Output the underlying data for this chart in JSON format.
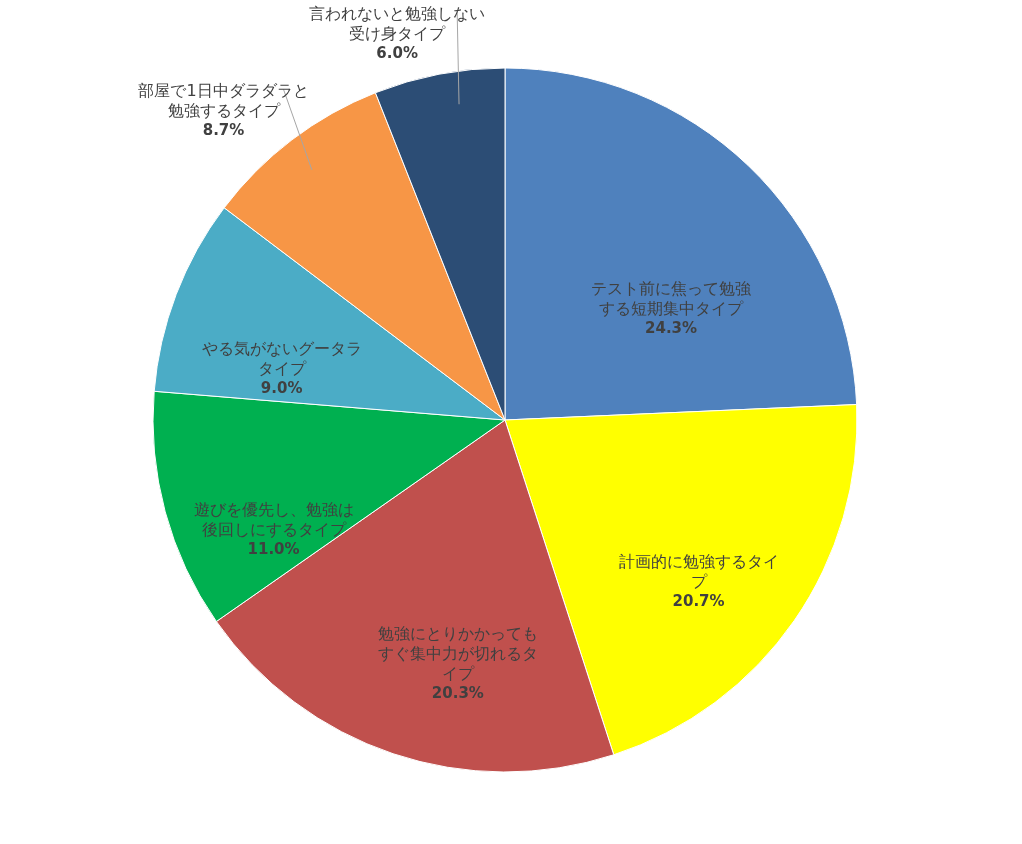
{
  "chart_data": {
    "type": "pie",
    "categories": [
      "テスト前に焦って勉強する短期集中タイプ",
      "計画的に勉強するタイプ",
      "勉強にとりかかってもすぐ集中力が切れるタイプ",
      "遊びを優先し、勉強は後回しにするタイプ",
      "やる気がないグータラタイプ",
      "部屋で1日中ダラダラと勉強するタイプ",
      "言われないと勉強しない受け身タイプ"
    ],
    "values": [
      24.3,
      20.7,
      20.3,
      11.0,
      9.0,
      8.7,
      6.0
    ],
    "value_labels": [
      "24.3%",
      "20.7%",
      "20.3%",
      "11.0%",
      "9.0%",
      "8.7%",
      "6.0%"
    ],
    "colors": [
      "#4f81bd",
      "#ffff00",
      "#c0504d",
      "#00b050",
      "#4bacc6",
      "#f79646",
      "#2c4d75"
    ],
    "legend": false
  }
}
